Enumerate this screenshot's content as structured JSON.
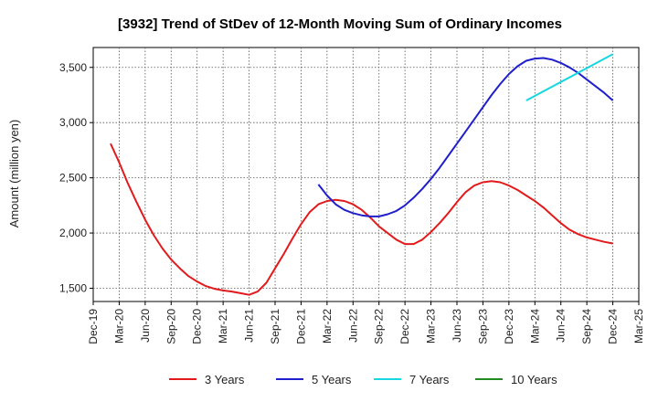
{
  "chart_data": {
    "type": "line",
    "title": "[3932]  Trend of StDev of 12-Month Moving Sum of Ordinary Incomes",
    "ylabel": "Amount (million yen)",
    "xlabel": "",
    "x_ticks": [
      "Dec-19",
      "Mar-20",
      "Jun-20",
      "Sep-20",
      "Dec-20",
      "Mar-21",
      "Jun-21",
      "Sep-21",
      "Dec-21",
      "Mar-22",
      "Jun-22",
      "Sep-22",
      "Dec-22",
      "Mar-23",
      "Jun-23",
      "Sep-23",
      "Dec-23",
      "Mar-24",
      "Jun-24",
      "Sep-24",
      "Dec-24",
      "Mar-25"
    ],
    "y_ticks": [
      1500,
      2000,
      2500,
      3000,
      3500
    ],
    "y_tick_labels": [
      "1,500",
      "2,000",
      "2,500",
      "3,000",
      "3,500"
    ],
    "ylim": [
      1380,
      3680
    ],
    "grid": true,
    "legend_position": "bottom",
    "series": [
      {
        "name": "3 Years",
        "color": "#e31a1c",
        "x": [
          "Feb-20",
          "Mar-20",
          "Apr-20",
          "May-20",
          "Jun-20",
          "Jul-20",
          "Aug-20",
          "Sep-20",
          "Oct-20",
          "Nov-20",
          "Dec-20",
          "Jan-21",
          "Feb-21",
          "Mar-21",
          "Apr-21",
          "May-21",
          "Jun-21",
          "Jul-21",
          "Aug-21",
          "Sep-21",
          "Oct-21",
          "Nov-21",
          "Dec-21",
          "Jan-22",
          "Feb-22",
          "Mar-22",
          "Apr-22",
          "May-22",
          "Jun-22",
          "Jul-22",
          "Aug-22",
          "Sep-22",
          "Oct-22",
          "Nov-22",
          "Dec-22",
          "Jan-23",
          "Feb-23",
          "Mar-23",
          "Apr-23",
          "May-23",
          "Jun-23",
          "Jul-23",
          "Aug-23",
          "Sep-23",
          "Oct-23",
          "Nov-23",
          "Dec-23",
          "Jan-24",
          "Feb-24",
          "Mar-24",
          "Apr-24",
          "May-24",
          "Jun-24",
          "Jul-24",
          "Aug-24",
          "Sep-24",
          "Oct-24",
          "Nov-24",
          "Dec-24"
        ],
        "values": [
          2810,
          2640,
          2450,
          2280,
          2120,
          1980,
          1860,
          1760,
          1680,
          1610,
          1560,
          1520,
          1495,
          1480,
          1470,
          1455,
          1440,
          1470,
          1550,
          1680,
          1810,
          1950,
          2080,
          2190,
          2260,
          2290,
          2300,
          2290,
          2260,
          2210,
          2140,
          2060,
          2000,
          1940,
          1900,
          1900,
          1940,
          2010,
          2090,
          2180,
          2280,
          2370,
          2430,
          2460,
          2470,
          2460,
          2430,
          2390,
          2340,
          2290,
          2230,
          2160,
          2090,
          2030,
          1990,
          1960,
          1940,
          1920,
          1905
        ]
      },
      {
        "name": "5 Years",
        "color": "#1f1fcc",
        "x": [
          "Feb-22",
          "Mar-22",
          "Apr-22",
          "May-22",
          "Jun-22",
          "Jul-22",
          "Aug-22",
          "Sep-22",
          "Oct-22",
          "Nov-22",
          "Dec-22",
          "Jan-23",
          "Feb-23",
          "Mar-23",
          "Apr-23",
          "May-23",
          "Jun-23",
          "Jul-23",
          "Aug-23",
          "Sep-23",
          "Oct-23",
          "Nov-23",
          "Dec-23",
          "Jan-24",
          "Feb-24",
          "Mar-24",
          "Apr-24",
          "May-24",
          "Jun-24",
          "Jul-24",
          "Aug-24",
          "Sep-24",
          "Oct-24",
          "Nov-24",
          "Dec-24"
        ],
        "values": [
          2440,
          2340,
          2260,
          2210,
          2180,
          2160,
          2150,
          2150,
          2170,
          2200,
          2250,
          2320,
          2400,
          2490,
          2590,
          2700,
          2810,
          2920,
          3030,
          3140,
          3250,
          3350,
          3440,
          3510,
          3560,
          3580,
          3585,
          3570,
          3540,
          3500,
          3450,
          3390,
          3330,
          3270,
          3200
        ]
      },
      {
        "name": "7 Years",
        "color": "#17d7e0",
        "x": [
          "Feb-24",
          "Dec-24"
        ],
        "values": [
          3200,
          3620
        ]
      },
      {
        "name": "10 Years",
        "color": "#228b22",
        "x": [],
        "values": []
      }
    ]
  }
}
